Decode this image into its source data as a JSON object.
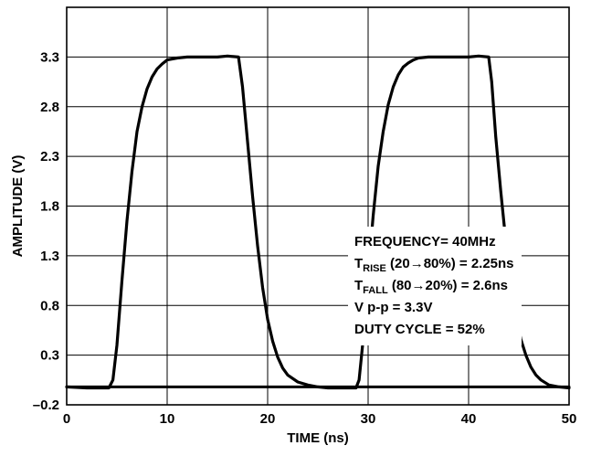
{
  "chart_data": {
    "type": "line",
    "xlabel": "TIME (ns)",
    "ylabel": "AMPLITUDE (V)",
    "xlim": [
      0,
      50
    ],
    "ylim": [
      -0.2,
      3.8
    ],
    "xticks": [
      0,
      10,
      20,
      30,
      40,
      50
    ],
    "xtick_labels": [
      "0",
      "10",
      "20",
      "30",
      "40",
      "50"
    ],
    "yticks": [
      -0.2,
      0.3,
      0.8,
      1.3,
      1.8,
      2.3,
      2.8,
      3.3
    ],
    "ytick_labels": [
      "–0.2",
      "0.3",
      "0.8",
      "1.3",
      "1.8",
      "2.3",
      "2.8",
      "3.3"
    ],
    "grid": true,
    "colors": {
      "trace": "#000000",
      "grid": "#000000"
    },
    "series": [
      {
        "x": [
          0,
          2,
          4.2,
          4.6,
          5,
          5.5,
          6,
          6.5,
          7,
          7.5,
          8,
          8.5,
          9,
          9.5,
          10,
          11,
          12,
          13,
          14,
          15,
          16,
          17.1,
          17.5,
          18,
          18.5,
          19,
          19.5,
          20,
          20.5,
          21,
          21.5,
          22,
          23,
          24,
          25,
          26,
          27,
          28,
          28.8,
          29.1,
          29.5,
          30,
          30.5,
          31,
          31.5,
          32,
          32.5,
          33,
          33.5,
          34,
          34.5,
          35,
          36,
          37,
          38,
          39,
          40,
          41,
          42,
          42.3,
          42.7,
          43.2,
          43.7,
          44.2,
          44.7,
          45.2,
          45.7,
          46.2,
          46.7,
          47.2,
          48,
          49,
          50
        ],
        "y": [
          -0.02,
          -0.03,
          -0.03,
          0.05,
          0.4,
          1.05,
          1.65,
          2.15,
          2.55,
          2.8,
          2.98,
          3.1,
          3.18,
          3.23,
          3.27,
          3.29,
          3.3,
          3.3,
          3.3,
          3.3,
          3.31,
          3.3,
          3.0,
          2.45,
          1.9,
          1.4,
          0.98,
          0.66,
          0.44,
          0.28,
          0.17,
          0.1,
          0.03,
          0.0,
          -0.02,
          -0.03,
          -0.03,
          -0.03,
          -0.03,
          0.05,
          0.45,
          1.1,
          1.7,
          2.2,
          2.55,
          2.82,
          3.0,
          3.12,
          3.2,
          3.24,
          3.27,
          3.29,
          3.3,
          3.3,
          3.3,
          3.3,
          3.3,
          3.31,
          3.3,
          3.05,
          2.5,
          1.95,
          1.45,
          1.02,
          0.7,
          0.46,
          0.3,
          0.18,
          0.1,
          0.05,
          0.0,
          -0.02,
          -0.03
        ]
      },
      {
        "x": [
          0,
          50
        ],
        "y": [
          -0.02,
          -0.02
        ]
      }
    ],
    "annotations": [
      {
        "main": "FREQUENCY= 40MHz"
      },
      {
        "main": "T",
        "sub": "RISE",
        "rest": " (20→80%) = 2.25ns"
      },
      {
        "main": "T",
        "sub": "FALL",
        "rest": " (80→20%) = 2.6ns"
      },
      {
        "main": "V p-p = 3.3V"
      },
      {
        "main": "DUTY CYCLE = 52%"
      }
    ]
  }
}
